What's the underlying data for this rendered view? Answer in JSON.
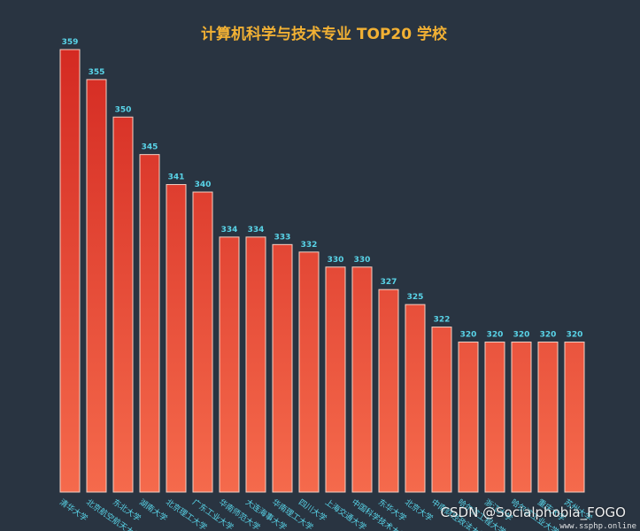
{
  "chart_data": {
    "type": "bar",
    "title": "计算机科学与技术专业 TOP20 学校",
    "categories": [
      "清华大学",
      "北京航空航天大学",
      "东北大学",
      "湖南大学",
      "北京理工大学",
      "广东工业大学",
      "华南师范大学",
      "大连海事大学",
      "华南理工大学",
      "四川大学",
      "上海交通大学",
      "中国科学技术大学",
      "东华大学",
      "北京大学",
      "中南财经政法大学",
      "哈尔滨工程大学",
      "浙江大学",
      "哈尔滨工业大学",
      "重庆大学",
      "苏州大学"
    ],
    "values": [
      359,
      355,
      350,
      345,
      341,
      340,
      334,
      334,
      333,
      332,
      330,
      330,
      327,
      325,
      322,
      320,
      320,
      320,
      320,
      320
    ],
    "ylim": [
      300,
      362
    ],
    "grid": false,
    "legend": "none"
  },
  "colors": {
    "background": "#293441",
    "title": "#f2b134",
    "bar_top": "#d42a22",
    "bar_bottom": "#f56a4c",
    "value_label": "#59d4e8",
    "tick_label": "#59d4e8"
  },
  "watermark": {
    "main": "CSDN @Socialphobia_FOGO",
    "sub": "www.ssphp.online"
  }
}
